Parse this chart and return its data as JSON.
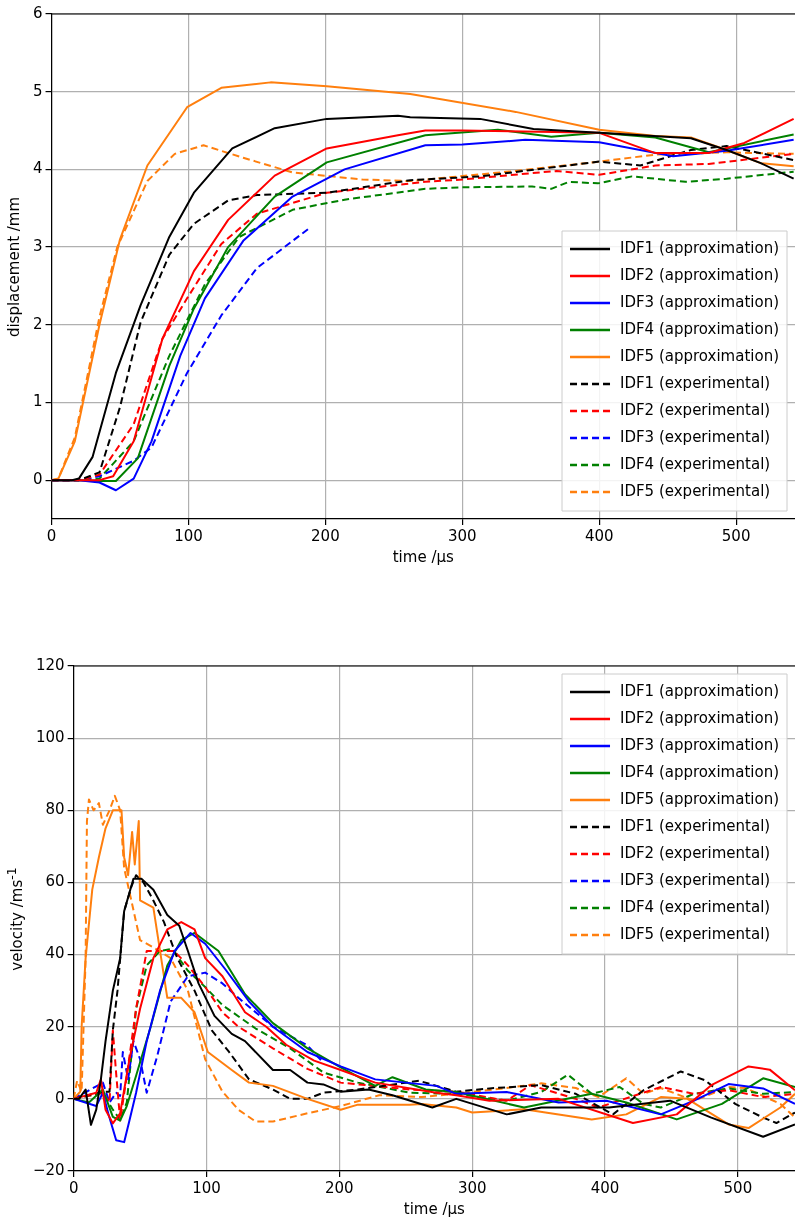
{
  "chart_data": [
    {
      "type": "line",
      "xlabel": "time /µs",
      "ylabel": "displacement /mm",
      "xlim": [
        0,
        543
      ],
      "xticks": [
        0,
        100,
        200,
        300,
        400,
        500
      ],
      "ylim": [
        -0.5,
        6
      ],
      "yticks": [
        0,
        1,
        2,
        3,
        4,
        5,
        6
      ],
      "grid": true,
      "legend": "bottom right",
      "series": [
        {
          "name": "IDF1 (approximation)",
          "color": "#000000",
          "line_style": "solid",
          "x": [
            0,
            15,
            20,
            30,
            47,
            65,
            86,
            104,
            132,
            163,
            201,
            253,
            262,
            313,
            352,
            400,
            467,
            493,
            518,
            542
          ],
          "values": [
            0,
            0,
            0.02,
            0.3,
            1.38,
            2.25,
            3.13,
            3.7,
            4.27,
            4.53,
            4.65,
            4.69,
            4.67,
            4.65,
            4.52,
            4.47,
            4.4,
            4.25,
            4.08,
            3.88
          ]
        },
        {
          "name": "IDF2 (approximation)",
          "color": "#ff0000",
          "line_style": "solid",
          "x": [
            0,
            20,
            35,
            45,
            60,
            81,
            104,
            129,
            163,
            201,
            253,
            273,
            300,
            400,
            441,
            480,
            506,
            542
          ],
          "values": [
            0,
            0,
            0,
            0.05,
            0.5,
            1.82,
            2.69,
            3.35,
            3.92,
            4.27,
            4.44,
            4.5,
            4.5,
            4.47,
            4.21,
            4.21,
            4.34,
            4.65
          ]
        },
        {
          "name": "IDF3 (approximation)",
          "color": "#0000ff",
          "line_style": "solid",
          "x": [
            0,
            20,
            35,
            47,
            60,
            73,
            94,
            112,
            140,
            176,
            214,
            273,
            300,
            346,
            400,
            454,
            493,
            542
          ],
          "values": [
            0,
            0,
            -0.03,
            -0.13,
            0.02,
            0.5,
            1.6,
            2.34,
            3.08,
            3.65,
            4.0,
            4.31,
            4.32,
            4.38,
            4.35,
            4.17,
            4.24,
            4.38
          ]
        },
        {
          "name": "IDF4 (approximation)",
          "color": "#008000",
          "line_style": "solid",
          "x": [
            0,
            20,
            35,
            47,
            63,
            86,
            104,
            129,
            163,
            201,
            273,
            326,
            365,
            400,
            441,
            480,
            542
          ],
          "values": [
            0,
            0,
            -0.01,
            -0.01,
            0.28,
            1.47,
            2.21,
            3.0,
            3.65,
            4.09,
            4.44,
            4.51,
            4.42,
            4.47,
            4.41,
            4.22,
            4.45
          ]
        },
        {
          "name": "IDF5 (approximation)",
          "color": "#ff7f0e",
          "line_style": "solid",
          "x": [
            0,
            5,
            17,
            35,
            50,
            70,
            99,
            124,
            160,
            201,
            262,
            339,
            400,
            441,
            467,
            493,
            518,
            542
          ],
          "values": [
            0,
            0.02,
            0.5,
            2.0,
            3.1,
            4.05,
            4.8,
            5.05,
            5.12,
            5.07,
            4.97,
            4.74,
            4.51,
            4.43,
            4.41,
            4.25,
            4.08,
            4.04
          ]
        },
        {
          "name": "IDF1 (experimental)",
          "color": "#000000",
          "line_style": "dashed",
          "x": [
            0,
            20,
            35,
            50,
            65,
            86,
            104,
            129,
            150,
            201,
            262,
            313,
            400,
            430,
            467,
            493,
            542
          ],
          "values": [
            0,
            0,
            0.1,
            0.94,
            2.03,
            2.9,
            3.3,
            3.6,
            3.67,
            3.7,
            3.86,
            3.91,
            4.1,
            4.05,
            4.25,
            4.3,
            4.12
          ]
        },
        {
          "name": "IDF2 (experimental)",
          "color": "#ff0000",
          "line_style": "dashed",
          "x": [
            0,
            20,
            35,
            60,
            81,
            99,
            124,
            150,
            201,
            273,
            300,
            369,
            400,
            441,
            480,
            542
          ],
          "values": [
            0,
            0,
            0.07,
            0.72,
            1.82,
            2.34,
            3.04,
            3.43,
            3.7,
            3.84,
            3.87,
            3.98,
            3.93,
            4.05,
            4.07,
            4.2
          ]
        },
        {
          "name": "IDF3 (experimental)",
          "color": "#0000ff",
          "line_style": "dashed",
          "x": [
            0,
            20,
            35,
            60,
            73,
            99,
            124,
            150,
            188
          ],
          "values": [
            0,
            0,
            0.05,
            0.25,
            0.42,
            1.38,
            2.12,
            2.73,
            3.24
          ]
        },
        {
          "name": "IDF4 (experimental)",
          "color": "#008000",
          "line_style": "dashed",
          "x": [
            0,
            20,
            35,
            60,
            86,
            112,
            137,
            176,
            214,
            273,
            300,
            351,
            365,
            378,
            399,
            424,
            463,
            493,
            542
          ],
          "values": [
            0,
            0,
            0.02,
            0.5,
            1.6,
            2.52,
            3.13,
            3.48,
            3.61,
            3.75,
            3.77,
            3.78,
            3.75,
            3.84,
            3.82,
            3.91,
            3.84,
            3.88,
            3.97
          ]
        },
        {
          "name": "IDF5 (experimental)",
          "color": "#ff7f0e",
          "line_style": "dashed",
          "x": [
            0,
            5,
            17,
            35,
            48,
            70,
            90,
            111,
            140,
            176,
            227,
            262,
            339,
            400,
            441,
            493,
            542
          ],
          "values": [
            0,
            0.02,
            0.55,
            2.1,
            3.0,
            3.85,
            4.2,
            4.31,
            4.15,
            3.96,
            3.87,
            3.85,
            3.98,
            4.1,
            4.19,
            4.22,
            4.2
          ]
        }
      ]
    },
    {
      "type": "line",
      "xlabel": "time /µs",
      "ylabel": "velocity /ms$^{-1}$",
      "xlim": [
        0,
        543
      ],
      "xticks": [
        0,
        100,
        200,
        300,
        400,
        500
      ],
      "ylim": [
        -20,
        120
      ],
      "yticks": [
        -20,
        0,
        20,
        40,
        60,
        80,
        100,
        120
      ],
      "grid": true,
      "legend": "top right",
      "series": [
        {
          "name": "IDF1 (approximation)",
          "color": "#000000",
          "line_style": "solid",
          "x": [
            0,
            4,
            9,
            13,
            17,
            20.5,
            24,
            29.5,
            35,
            38,
            45,
            51,
            60,
            70.5,
            79.5,
            86,
            94,
            106,
            119,
            129,
            150,
            163,
            176,
            188,
            201,
            222,
            240,
            270,
            288,
            326,
            352,
            403,
            449,
            480,
            519,
            543
          ],
          "values": [
            0,
            0,
            2.6,
            -7.2,
            -3,
            5.4,
            16,
            30,
            39,
            52,
            61,
            61,
            58,
            51,
            48,
            41,
            32,
            23,
            18,
            16,
            8,
            8,
            4.5,
            4,
            2,
            2.6,
            1,
            -2.4,
            0,
            -4.3,
            -2.4,
            -2.4,
            -0.5,
            -5.2,
            -10.5,
            -7.1
          ]
        },
        {
          "name": "IDF2 (approximation)",
          "color": "#ff0000",
          "line_style": "solid",
          "x": [
            0,
            17,
            20.5,
            24,
            29.5,
            35,
            42,
            50,
            60,
            70.5,
            81,
            91,
            99,
            112,
            129,
            145,
            160,
            181,
            201,
            227,
            273,
            288,
            313,
            365,
            421,
            454,
            480,
            508,
            524,
            543
          ],
          "values": [
            0,
            1.7,
            5.4,
            -3,
            -6.8,
            -4,
            11,
            25,
            39,
            47,
            49,
            47,
            39,
            34,
            24,
            20,
            15,
            10.6,
            8,
            4.5,
            1.7,
            1,
            -0.5,
            0,
            -6.7,
            -4.3,
            3.8,
            9,
            8.1,
            2.4
          ]
        },
        {
          "name": "IDF3 (approximation)",
          "color": "#0000ff",
          "line_style": "solid",
          "x": [
            0,
            17,
            22,
            26,
            32,
            38,
            42,
            47,
            55,
            65,
            76,
            88,
            99,
            114,
            132,
            150,
            176,
            201,
            227,
            273,
            288,
            326,
            365,
            401,
            442,
            467,
            493,
            519,
            543
          ],
          "values": [
            0,
            -2,
            1.7,
            -4,
            -11.5,
            -12,
            -6,
            1.7,
            16,
            30,
            41,
            46,
            43,
            36,
            27,
            20,
            13,
            9,
            5.4,
            3.6,
            1.4,
            1.9,
            -1,
            -0.5,
            -4.3,
            -0.5,
            4.1,
            2.9,
            -1.4
          ]
        },
        {
          "name": "IDF4 (approximation)",
          "color": "#008000",
          "line_style": "solid",
          "x": [
            0,
            11.5,
            22,
            29.5,
            35,
            40,
            47,
            58,
            70.5,
            81,
            91,
            109,
            129,
            150,
            176,
            201,
            227,
            240,
            265,
            288,
            339,
            390,
            416,
            454,
            488,
            519,
            543
          ],
          "values": [
            0,
            -1,
            2.6,
            -5,
            -6,
            -2,
            6.4,
            20,
            37,
            44,
            46,
            41,
            29,
            21,
            14,
            8.7,
            3.6,
            6,
            2.6,
            1.9,
            -2.4,
            1.4,
            -1,
            -5.7,
            -1.4,
            5.7,
            3.3
          ]
        },
        {
          "name": "IDF5 (approximation)",
          "color": "#ff7f0e",
          "line_style": "solid",
          "x": [
            0,
            5,
            6,
            9,
            14,
            19,
            24,
            29.5,
            36,
            38,
            41,
            44,
            46,
            49,
            50,
            60,
            70.5,
            81,
            91,
            101,
            119,
            132,
            150,
            176,
            201,
            214,
            253,
            262,
            288,
            300,
            339,
            390,
            416,
            442,
            462,
            493,
            508,
            532,
            543
          ],
          "values": [
            0,
            2,
            20,
            39,
            58,
            67,
            75,
            80,
            80,
            67,
            62,
            74,
            65,
            77,
            55,
            53,
            28,
            28,
            24,
            13,
            8,
            4.5,
            3.6,
            0,
            -3,
            -1.6,
            -1.6,
            -1.4,
            -2.4,
            -3.8,
            -2.9,
            -5.7,
            -4.3,
            0.5,
            0,
            -7.1,
            -8.1,
            -2.4,
            1.4
          ]
        },
        {
          "name": "IDF1 (experimental)",
          "color": "#000000",
          "line_style": "dashed",
          "x": [
            0,
            22,
            27,
            29.5,
            33,
            38,
            43.6,
            47,
            52.6,
            60,
            68,
            78,
            91,
            104,
            117,
            132,
            150,
            163,
            176,
            188,
            214,
            260,
            288,
            313,
            352,
            378,
            406,
            429,
            457,
            475,
            498,
            519,
            529,
            543
          ],
          "values": [
            0,
            2,
            2,
            19,
            30,
            52,
            59,
            62,
            60,
            55,
            49,
            39,
            30,
            19,
            13,
            5.4,
            2.6,
            0,
            0,
            1.7,
            2.6,
            5,
            2,
            2.9,
            3.8,
            1.4,
            -4.3,
            2.4,
            7.6,
            5.2,
            -1.4,
            -5.2,
            -6.7,
            -3.8
          ]
        },
        {
          "name": "IDF2 (experimental)",
          "color": "#ff0000",
          "line_style": "dashed",
          "x": [
            0,
            22,
            27,
            29.5,
            32,
            35,
            40,
            47,
            55,
            68,
            75.6,
            86,
            99,
            112,
            124,
            150,
            176,
            201,
            253,
            288,
            326,
            344,
            378,
            395,
            442,
            467,
            493,
            519,
            543
          ],
          "values": [
            0,
            1.7,
            -1,
            19,
            7,
            -6,
            6.4,
            25,
            41,
            41,
            41,
            37,
            31,
            24,
            20,
            14,
            8.3,
            4.5,
            2.6,
            2,
            -0.5,
            3.8,
            0,
            -2.4,
            3.3,
            1.4,
            2.4,
            0.5,
            1.4
          ]
        },
        {
          "name": "IDF3 (experimental)",
          "color": "#0000ff",
          "line_style": "dashed",
          "x": [
            0,
            22,
            27,
            32,
            35,
            37,
            41,
            45,
            50,
            55,
            63,
            73,
            86,
            99,
            112,
            124,
            150,
            176,
            188
          ],
          "values": [
            0,
            4.5,
            -1,
            1.7,
            0.8,
            13,
            5.4,
            16,
            11,
            1.7,
            12,
            27,
            34,
            35,
            32,
            28,
            20,
            14.8,
            10
          ]
        },
        {
          "name": "IDF4 (experimental)",
          "color": "#008000",
          "line_style": "dashed",
          "x": [
            0,
            22,
            29.5,
            35,
            40,
            47,
            55,
            65,
            74,
            86,
            99,
            112,
            137,
            163,
            188,
            214,
            253,
            288,
            326,
            352,
            372,
            390,
            411,
            429,
            442,
            467,
            493,
            519,
            543
          ],
          "values": [
            0,
            1.7,
            -3,
            -5.8,
            -1,
            25,
            37,
            41,
            41.6,
            35.5,
            31,
            26,
            19.5,
            14,
            7.3,
            4.5,
            1.7,
            1.4,
            -0.5,
            1.9,
            6.7,
            1.4,
            3.3,
            -1.4,
            -2.4,
            1.4,
            2.9,
            1.4,
            1.9
          ]
        },
        {
          "name": "IDF5 (experimental)",
          "color": "#ff7f0e",
          "line_style": "dashed",
          "x": [
            0,
            2.6,
            6,
            9,
            10,
            11.5,
            15,
            19,
            22,
            27,
            31,
            35,
            38,
            44,
            50,
            60,
            73,
            86,
            99,
            112,
            124,
            137,
            150,
            176,
            201,
            230,
            262,
            288,
            326,
            352,
            378,
            395,
            416,
            429,
            442,
            467,
            493,
            506,
            532,
            543
          ],
          "values": [
            0,
            5,
            2,
            39,
            77,
            83,
            80,
            82,
            76,
            80,
            84,
            80,
            64,
            54,
            44,
            42,
            39,
            30,
            11,
            2,
            -3,
            -6.3,
            -6.3,
            -4,
            -2,
            1,
            0.5,
            1.4,
            3,
            4.3,
            3,
            0.5,
            5.7,
            1.4,
            3,
            -0.5,
            3.3,
            3,
            -1.4,
            -5.2
          ]
        }
      ]
    }
  ]
}
